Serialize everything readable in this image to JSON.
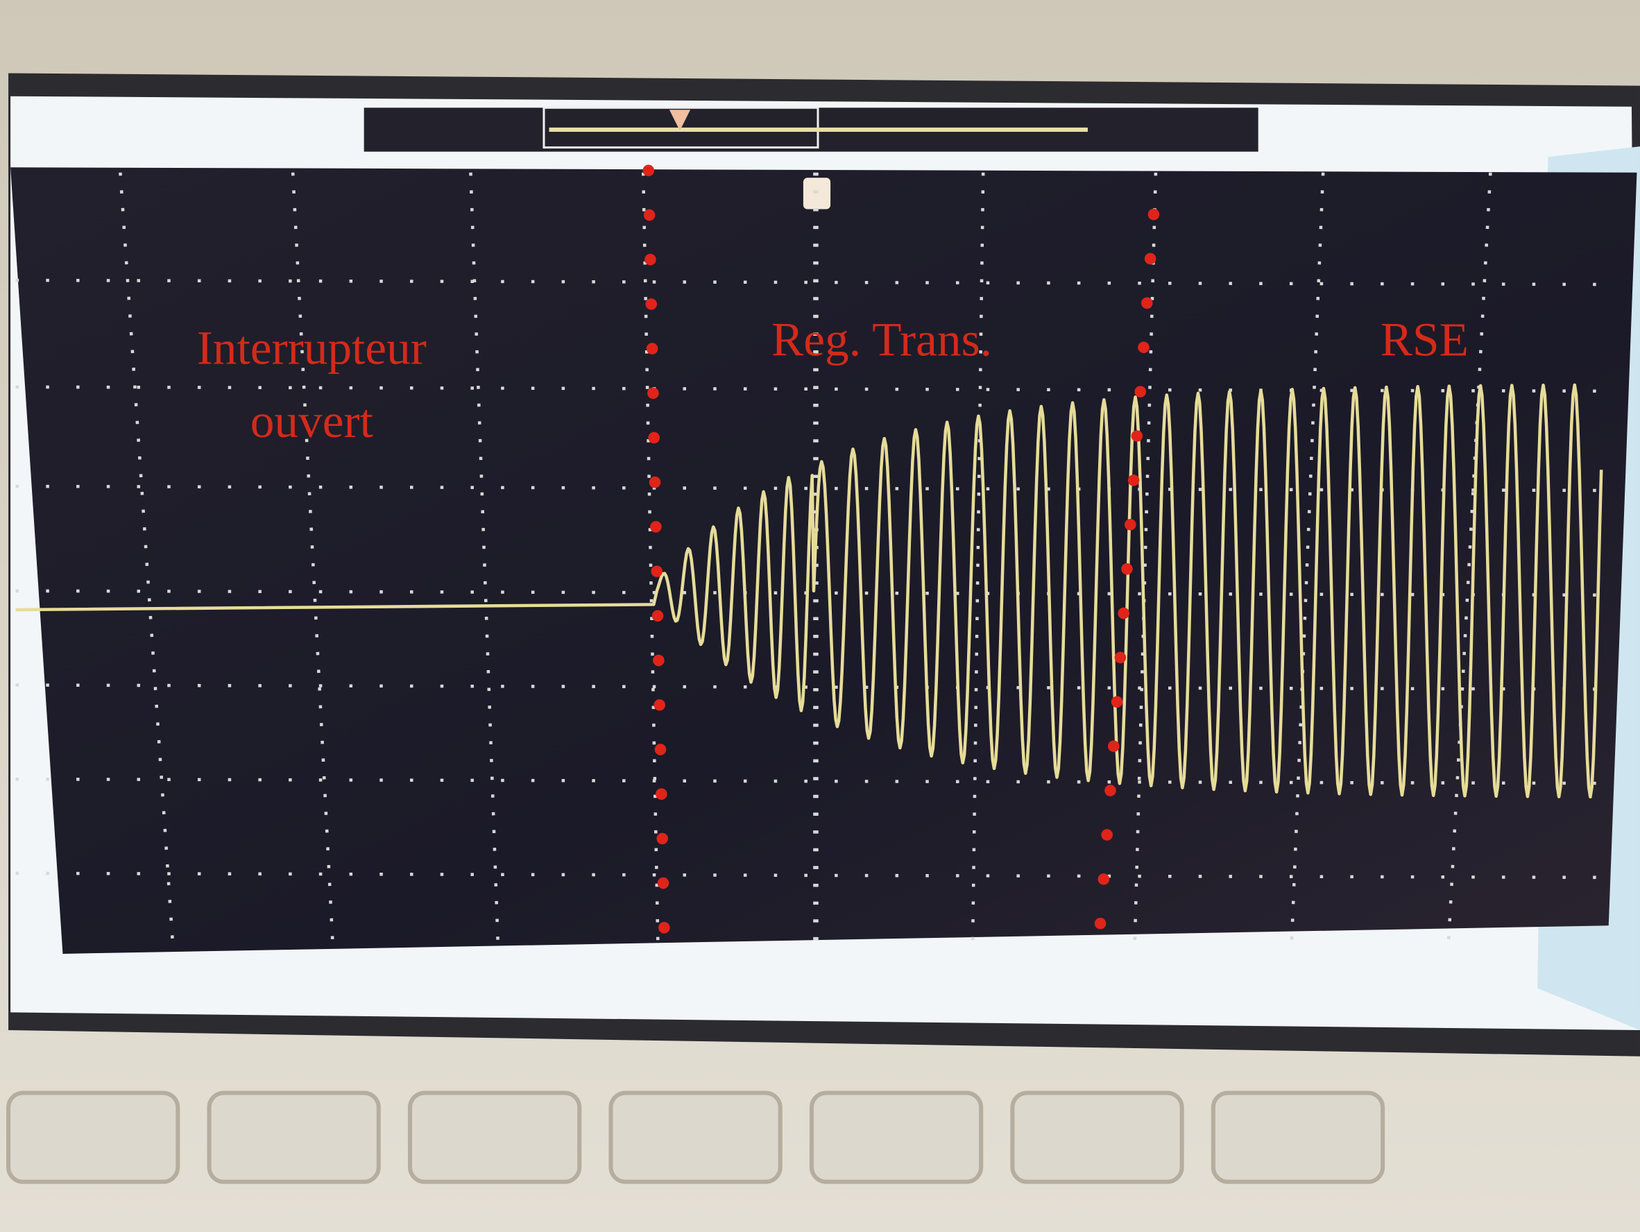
{
  "regions": [
    {
      "label_lines": [
        "Interrupteur",
        "ouvert"
      ]
    },
    {
      "label": "Reg. Trans."
    },
    {
      "label": "RSE"
    }
  ]
}
